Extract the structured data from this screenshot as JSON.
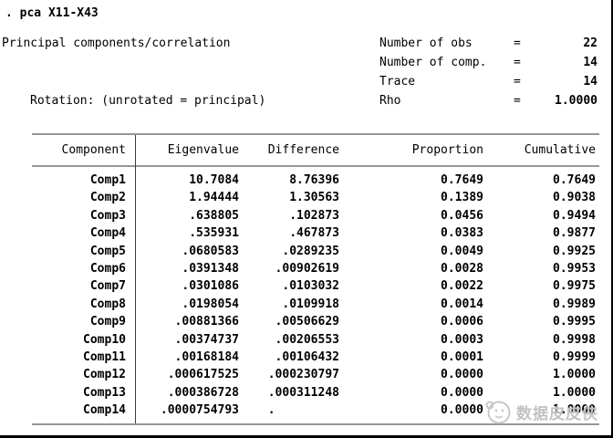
{
  "command": ". pca X11-X43",
  "header": {
    "title": "Principal components/correlation",
    "rotation": "Rotation: (unrotated = principal)",
    "stats": [
      {
        "label": "Number of obs",
        "eq": "=",
        "value": "22"
      },
      {
        "label": "Number of comp.",
        "eq": "=",
        "value": "14"
      },
      {
        "label": "Trace",
        "eq": "=",
        "value": "14"
      },
      {
        "label": "Rho",
        "eq": "=",
        "value": "1.0000"
      }
    ]
  },
  "table": {
    "columns": [
      "Component",
      "Eigenvalue",
      "Difference",
      "Proportion",
      "Cumulative"
    ],
    "rows": [
      [
        "Comp1",
        "10.7084",
        "8.76396",
        "0.7649",
        "0.7649"
      ],
      [
        "Comp2",
        "1.94444",
        "1.30563",
        "0.1389",
        "0.9038"
      ],
      [
        "Comp3",
        ".638805",
        ".102873",
        "0.0456",
        "0.9494"
      ],
      [
        "Comp4",
        ".535931",
        ".467873",
        "0.0383",
        "0.9877"
      ],
      [
        "Comp5",
        ".0680583",
        ".0289235",
        "0.0049",
        "0.9925"
      ],
      [
        "Comp6",
        ".0391348",
        ".00902619",
        "0.0028",
        "0.9953"
      ],
      [
        "Comp7",
        ".0301086",
        ".0103032",
        "0.0022",
        "0.9975"
      ],
      [
        "Comp8",
        ".0198054",
        ".0109918",
        "0.0014",
        "0.9989"
      ],
      [
        "Comp9",
        ".00881366",
        ".00506629",
        "0.0006",
        "0.9995"
      ],
      [
        "Comp10",
        ".00374737",
        ".00206553",
        "0.0003",
        "0.9998"
      ],
      [
        "Comp11",
        ".00168184",
        ".00106432",
        "0.0001",
        "0.9999"
      ],
      [
        "Comp12",
        ".000617525",
        ".000230797",
        "0.0000",
        "1.0000"
      ],
      [
        "Comp13",
        ".000386728",
        ".000311248",
        "0.0000",
        "1.0000"
      ],
      [
        "Comp14",
        ".0000754793",
        ".         ",
        "0.0000",
        "1.0000"
      ]
    ]
  },
  "watermark": {
    "text": "数据皮皮侠",
    "icon": "mascot-logo-icon",
    "color": "#c2c2c2"
  },
  "colors": {
    "text": "#000000",
    "rule_gray": "#969696",
    "divider_dark": "#3c3c3c",
    "watermark_gray": "#c2c2c2",
    "background": "#ffffff"
  }
}
